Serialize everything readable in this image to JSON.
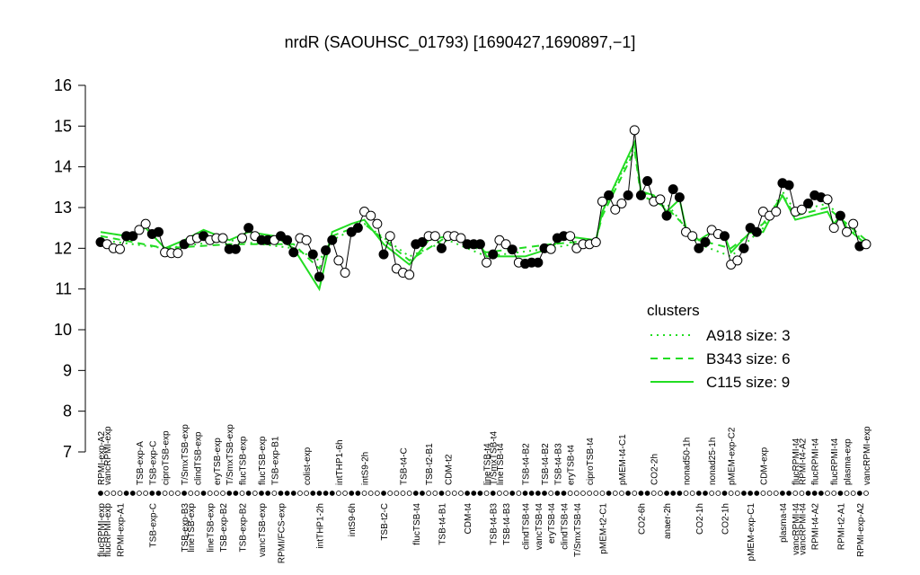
{
  "chart_data": {
    "type": "line",
    "title": "nrdR (SAOUHSC_01793) [1690427,1690897,−1]",
    "ylim": [
      7,
      16
    ],
    "yticks": [
      7,
      8,
      9,
      10,
      11,
      12,
      13,
      14,
      15,
      16
    ],
    "line_color": "#000000",
    "values": [
      12.15,
      12.1,
      12.0,
      11.98,
      12.3,
      12.3,
      12.45,
      12.6,
      12.35,
      12.4,
      11.9,
      11.88,
      11.88,
      12.1,
      12.2,
      12.25,
      12.3,
      12.2,
      12.25,
      12.25,
      11.98,
      11.98,
      12.25,
      12.5,
      12.3,
      12.2,
      12.2,
      12.2,
      12.3,
      12.2,
      11.9,
      12.25,
      12.2,
      11.85,
      11.3,
      11.95,
      12.2,
      11.7,
      11.4,
      12.4,
      12.5,
      12.9,
      12.8,
      12.6,
      11.85,
      12.3,
      11.5,
      11.4,
      11.35,
      12.1,
      12.15,
      12.3,
      12.3,
      12.0,
      12.3,
      12.3,
      12.25,
      12.1,
      12.1,
      12.1,
      11.65,
      11.85,
      12.2,
      12.1,
      11.97,
      11.65,
      11.62,
      11.65,
      11.65,
      12.0,
      11.98,
      12.25,
      12.3,
      12.3,
      12.0,
      12.1,
      12.1,
      12.15,
      13.15,
      13.3,
      12.95,
      13.1,
      13.3,
      14.9,
      13.3,
      13.65,
      13.15,
      13.2,
      12.8,
      13.45,
      13.25,
      12.4,
      12.3,
      12.0,
      12.15,
      12.45,
      12.35,
      12.3,
      11.6,
      11.7,
      12.0,
      12.5,
      12.4,
      12.9,
      12.8,
      12.9,
      13.6,
      13.55,
      12.9,
      12.95,
      13.1,
      13.3,
      13.25,
      13.2,
      12.5,
      12.8,
      12.4,
      12.6,
      12.05,
      12.1
    ],
    "filled": [
      0,
      4,
      5,
      8,
      9,
      13,
      16,
      20,
      21,
      23,
      25,
      26,
      28,
      29,
      30,
      33,
      34,
      35,
      36,
      39,
      40,
      44,
      49,
      50,
      53,
      57,
      58,
      59,
      61,
      64,
      66,
      67,
      68,
      69,
      71,
      72,
      79,
      82,
      84,
      85,
      88,
      89,
      90,
      93,
      94,
      97,
      100,
      101,
      102,
      106,
      107,
      110,
      111,
      112,
      115,
      118
    ],
    "top_labels": [
      {
        "at": 0,
        "label": "RPMI-exp-A2"
      },
      {
        "at": 1,
        "label": "vancRPMI-exp"
      },
      {
        "at": 6,
        "label": "TSB-exp-A"
      },
      {
        "at": 8,
        "label": "TSB-exp-C"
      },
      {
        "at": 10,
        "label": "ciproTSB-exp"
      },
      {
        "at": 13,
        "label": "T/SmxTSB-exp"
      },
      {
        "at": 15,
        "label": "clindTSB-exp"
      },
      {
        "at": 18,
        "label": "eryTSB-exp"
      },
      {
        "at": 20,
        "label": "T/SmxTSB-exp"
      },
      {
        "at": 22,
        "label": "flucTSB-exp"
      },
      {
        "at": 25,
        "label": "flucTSB-exp"
      },
      {
        "at": 27,
        "label": "TSB-exp-B1"
      },
      {
        "at": 32,
        "label": "colist-exp"
      },
      {
        "at": 37,
        "label": "intTHP1-6h"
      },
      {
        "at": 41,
        "label": "intS9-2h"
      },
      {
        "at": 47,
        "label": "TSB-t4-C"
      },
      {
        "at": 51,
        "label": "TSB-t2-B1"
      },
      {
        "at": 54,
        "label": "CDM-t2"
      },
      {
        "at": 60,
        "label": "lineTSB-t4"
      },
      {
        "at": 61,
        "label": "T/SmxTSB-t4"
      },
      {
        "at": 62,
        "label": "lineTSB-t4"
      },
      {
        "at": 66,
        "label": "TSB-t4-B2"
      },
      {
        "at": 69,
        "label": "TSB-t4-B2"
      },
      {
        "at": 71,
        "label": "TSB-t4-B3"
      },
      {
        "at": 73,
        "label": "eryTSB-t4"
      },
      {
        "at": 76,
        "label": "ciproTSB-t4"
      },
      {
        "at": 81,
        "label": "pMEM-t4-C1"
      },
      {
        "at": 86,
        "label": "CO2-2h"
      },
      {
        "at": 91,
        "label": "nonad50-1h"
      },
      {
        "at": 95,
        "label": "nonad25-1h"
      },
      {
        "at": 98,
        "label": "pMEM-exp-C2"
      },
      {
        "at": 103,
        "label": "CDM-exp"
      },
      {
        "at": 108,
        "label": "flucRPMI-t4"
      },
      {
        "at": 109,
        "label": "RPMI-t4-A2"
      },
      {
        "at": 111,
        "label": "flucRPMI-t4"
      },
      {
        "at": 114,
        "label": "flucRPMI-t4"
      },
      {
        "at": 116,
        "label": "plasma-exp"
      },
      {
        "at": 119,
        "label": "vancRPMI-exp"
      }
    ],
    "bottom_labels": [
      {
        "at": 0,
        "label": "flucRPMI-exp"
      },
      {
        "at": 1,
        "label": "flucRPMI-exp"
      },
      {
        "at": 3,
        "label": "RPMI-exp-A1"
      },
      {
        "at": 8,
        "label": "TSB-exp-C"
      },
      {
        "at": 13,
        "label": "TSB-exp-B3"
      },
      {
        "at": 14,
        "label": "lineTSB-exp"
      },
      {
        "at": 17,
        "label": "lineTSB-exp"
      },
      {
        "at": 19,
        "label": "TSB-exp-B2"
      },
      {
        "at": 22,
        "label": "TSB-exp-B2"
      },
      {
        "at": 25,
        "label": "vancTSB-exp"
      },
      {
        "at": 28,
        "label": "RPMI/FCS-exp"
      },
      {
        "at": 34,
        "label": "intTHP1-2h"
      },
      {
        "at": 39,
        "label": "intS9-6h"
      },
      {
        "at": 44,
        "label": "TSB-t2-C"
      },
      {
        "at": 49,
        "label": "flucTSB-t4"
      },
      {
        "at": 53,
        "label": "TSB-t4-B1"
      },
      {
        "at": 57,
        "label": "CDM-t4"
      },
      {
        "at": 61,
        "label": "TSB-t4-B3"
      },
      {
        "at": 63,
        "label": "TSB-t4-B3"
      },
      {
        "at": 66,
        "label": "clindTSB-t4"
      },
      {
        "at": 68,
        "label": "vancTSB-t4"
      },
      {
        "at": 70,
        "label": "eryTSB-t4"
      },
      {
        "at": 72,
        "label": "clindTSB-t4"
      },
      {
        "at": 74,
        "label": "T/SmxTSB-t4"
      },
      {
        "at": 78,
        "label": "pMEM-t2-C1"
      },
      {
        "at": 84,
        "label": "CO2-6h"
      },
      {
        "at": 88,
        "label": "anaer-2h"
      },
      {
        "at": 93,
        "label": "CO2-1h"
      },
      {
        "at": 97,
        "label": "CO2-1h"
      },
      {
        "at": 101,
        "label": "pMEM-exp-C1"
      },
      {
        "at": 106,
        "label": "plasma-t4"
      },
      {
        "at": 108,
        "label": "vancRPMI-t4"
      },
      {
        "at": 109,
        "label": "vancRPMI-t4"
      },
      {
        "at": 111,
        "label": "RPMI-t4-A2"
      },
      {
        "at": 115,
        "label": "RPMI-t2-A1"
      },
      {
        "at": 118,
        "label": "RPMI-exp-A2"
      }
    ],
    "legend_title": "clusters",
    "legend": "right",
    "series": [
      {
        "name": "A918 size: 3",
        "color": "#22dd22",
        "style": "dotted",
        "x": [
          0,
          10,
          20,
          30,
          34,
          36,
          41,
          48,
          54,
          60,
          70,
          77,
          78,
          83,
          84,
          88,
          93,
          98,
          103,
          106,
          108,
          113,
          119
        ],
        "values": [
          12.2,
          12.0,
          12.2,
          12.0,
          11.7,
          12.2,
          12.6,
          11.8,
          12.2,
          11.8,
          12.0,
          12.2,
          12.9,
          14.5,
          13.4,
          13.1,
          12.1,
          11.8,
          12.5,
          13.4,
          12.9,
          13.1,
          12.1
        ]
      },
      {
        "name": "B343 size: 6",
        "color": "#22dd22",
        "style": "dashed",
        "x": [
          0,
          10,
          20,
          30,
          34,
          36,
          41,
          48,
          54,
          60,
          70,
          77,
          78,
          83,
          84,
          88,
          93,
          98,
          103,
          106,
          108,
          113,
          119
        ],
        "values": [
          12.3,
          12.0,
          12.1,
          12.1,
          11.5,
          12.3,
          12.6,
          11.7,
          12.3,
          11.9,
          12.1,
          12.2,
          12.8,
          14.4,
          13.3,
          13.0,
          12.2,
          12.0,
          12.6,
          13.3,
          12.8,
          13.0,
          12.2
        ]
      },
      {
        "name": "C115 size: 9",
        "color": "#22dd22",
        "style": "solid",
        "x": [
          0,
          4,
          7,
          10,
          13,
          16,
          20,
          23,
          27,
          30,
          34,
          36,
          39,
          41,
          44,
          48,
          51,
          54,
          59,
          60,
          66,
          70,
          72,
          77,
          78,
          83,
          84,
          86,
          88,
          90,
          91,
          93,
          95,
          97,
          98,
          101,
          103,
          106,
          108,
          113,
          114,
          115,
          116,
          119
        ],
        "values": [
          12.4,
          12.3,
          12.5,
          12.0,
          12.2,
          12.45,
          12.2,
          12.4,
          12.3,
          12.0,
          11.0,
          12.4,
          12.6,
          12.7,
          12.1,
          11.6,
          12.2,
          12.3,
          12.1,
          11.8,
          11.8,
          12.0,
          12.3,
          12.2,
          12.9,
          14.6,
          13.4,
          13.3,
          12.9,
          13.2,
          12.5,
          12.2,
          12.4,
          12.3,
          11.9,
          12.4,
          12.4,
          13.3,
          12.7,
          12.9,
          12.6,
          12.8,
          12.5,
          12.1
        ]
      }
    ]
  }
}
